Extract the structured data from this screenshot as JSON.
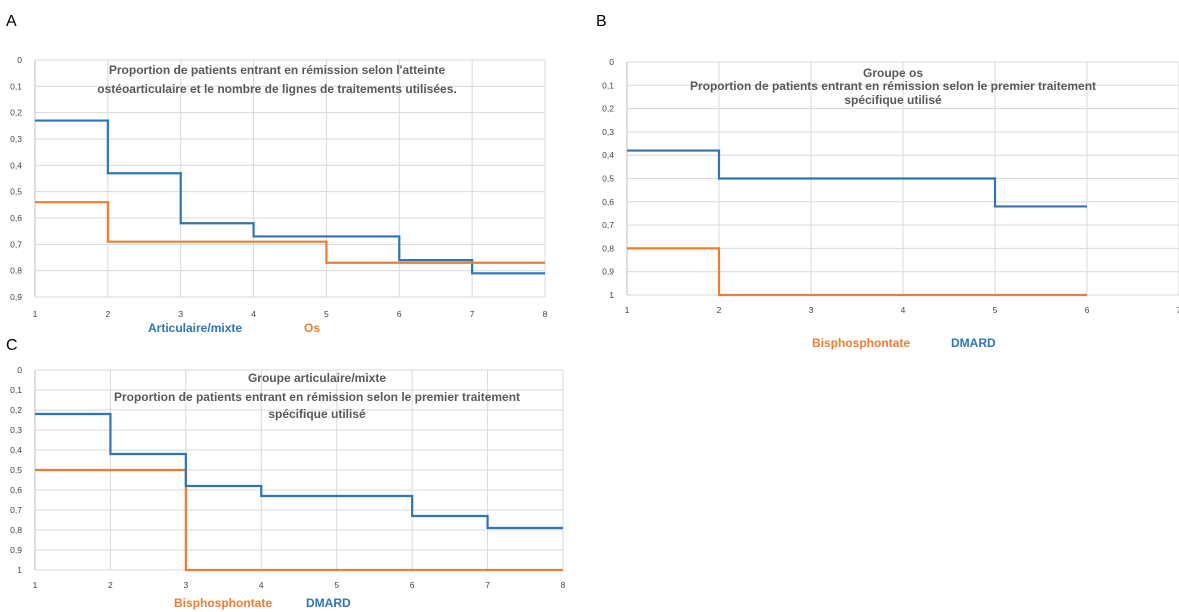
{
  "chart_data": [
    {
      "type": "line",
      "panel": "A",
      "title": [
        "Proportion de patients entrant en rémission selon l'atteinte",
        "ostéoarticulaire et le nombre de lignes de traitements utilisées."
      ],
      "step": true,
      "y_inverted": true,
      "xlim": [
        1,
        8
      ],
      "ylim": [
        0,
        0.9
      ],
      "x_ticks": [
        "1",
        "2",
        "3",
        "4",
        "5",
        "6",
        "7",
        "8"
      ],
      "y_ticks": [
        "0",
        "0,1",
        "0,2",
        "0,3",
        "0,4",
        "0,5",
        "0,6",
        "0,7",
        "0,8",
        "0,9"
      ],
      "grid": true,
      "series": [
        {
          "name": "Articulaire/mixte",
          "color": "#2e75b6",
          "x": [
            1,
            2,
            3,
            4,
            5,
            6,
            7,
            8
          ],
          "y": [
            0.23,
            0.43,
            0.62,
            0.67,
            0.67,
            0.76,
            0.81,
            0.81
          ]
        },
        {
          "name": "Os",
          "color": "#ed7d31",
          "x": [
            1,
            2,
            3,
            4,
            5,
            6,
            7,
            8
          ],
          "y": [
            0.54,
            0.69,
            0.69,
            0.69,
            0.77,
            0.77,
            0.77,
            0.77
          ]
        }
      ]
    },
    {
      "type": "line",
      "panel": "B",
      "title": [
        "Groupe os",
        "Proportion de patients entrant en rémission selon le premier traitement",
        "spécifique utilisé"
      ],
      "step": true,
      "y_inverted": true,
      "xlim": [
        1,
        7
      ],
      "ylim": [
        0,
        1
      ],
      "x_ticks": [
        "1",
        "2",
        "3",
        "4",
        "5",
        "6",
        "7"
      ],
      "y_ticks": [
        "0",
        "0,1",
        "0,2",
        "0,3",
        "0,4",
        "0,5",
        "0,6",
        "0,7",
        "0,8",
        "0,9",
        "1"
      ],
      "grid": true,
      "series": [
        {
          "name": "Bisphosphontate",
          "color": "#ed7d31",
          "x": [
            1,
            2,
            3,
            4,
            5,
            6
          ],
          "y": [
            0.8,
            1,
            1,
            1,
            1,
            1
          ]
        },
        {
          "name": "DMARD",
          "color": "#2e75b6",
          "x": [
            1,
            2,
            3,
            4,
            5,
            6
          ],
          "y": [
            0.38,
            0.5,
            0.5,
            0.5,
            0.62,
            0.62
          ]
        }
      ]
    },
    {
      "type": "line",
      "panel": "C",
      "title": [
        "Groupe articulaire/mixte",
        "Proportion de patients entrant en rémission selon le premier traitement",
        "spécifique utilisé"
      ],
      "step": true,
      "y_inverted": true,
      "xlim": [
        1,
        8
      ],
      "ylim": [
        0,
        1
      ],
      "x_ticks": [
        "1",
        "2",
        "3",
        "4",
        "5",
        "6",
        "7",
        "8"
      ],
      "y_ticks": [
        "0",
        "0,1",
        "0,2",
        "0,3",
        "0,4",
        "0,5",
        "0,6",
        "0,7",
        "0,8",
        "0,9",
        "1"
      ],
      "grid": true,
      "series": [
        {
          "name": "Bisphosphontate",
          "color": "#ed7d31",
          "x": [
            1,
            2,
            3,
            4,
            5,
            6,
            7,
            8
          ],
          "y": [
            0.5,
            0.5,
            1,
            1,
            1,
            1,
            1,
            1
          ]
        },
        {
          "name": "DMARD",
          "color": "#2e75b6",
          "x": [
            1,
            2,
            3,
            4,
            5,
            6,
            7,
            8
          ],
          "y": [
            0.22,
            0.42,
            0.58,
            0.63,
            0.63,
            0.73,
            0.79,
            0.79
          ]
        }
      ]
    }
  ]
}
